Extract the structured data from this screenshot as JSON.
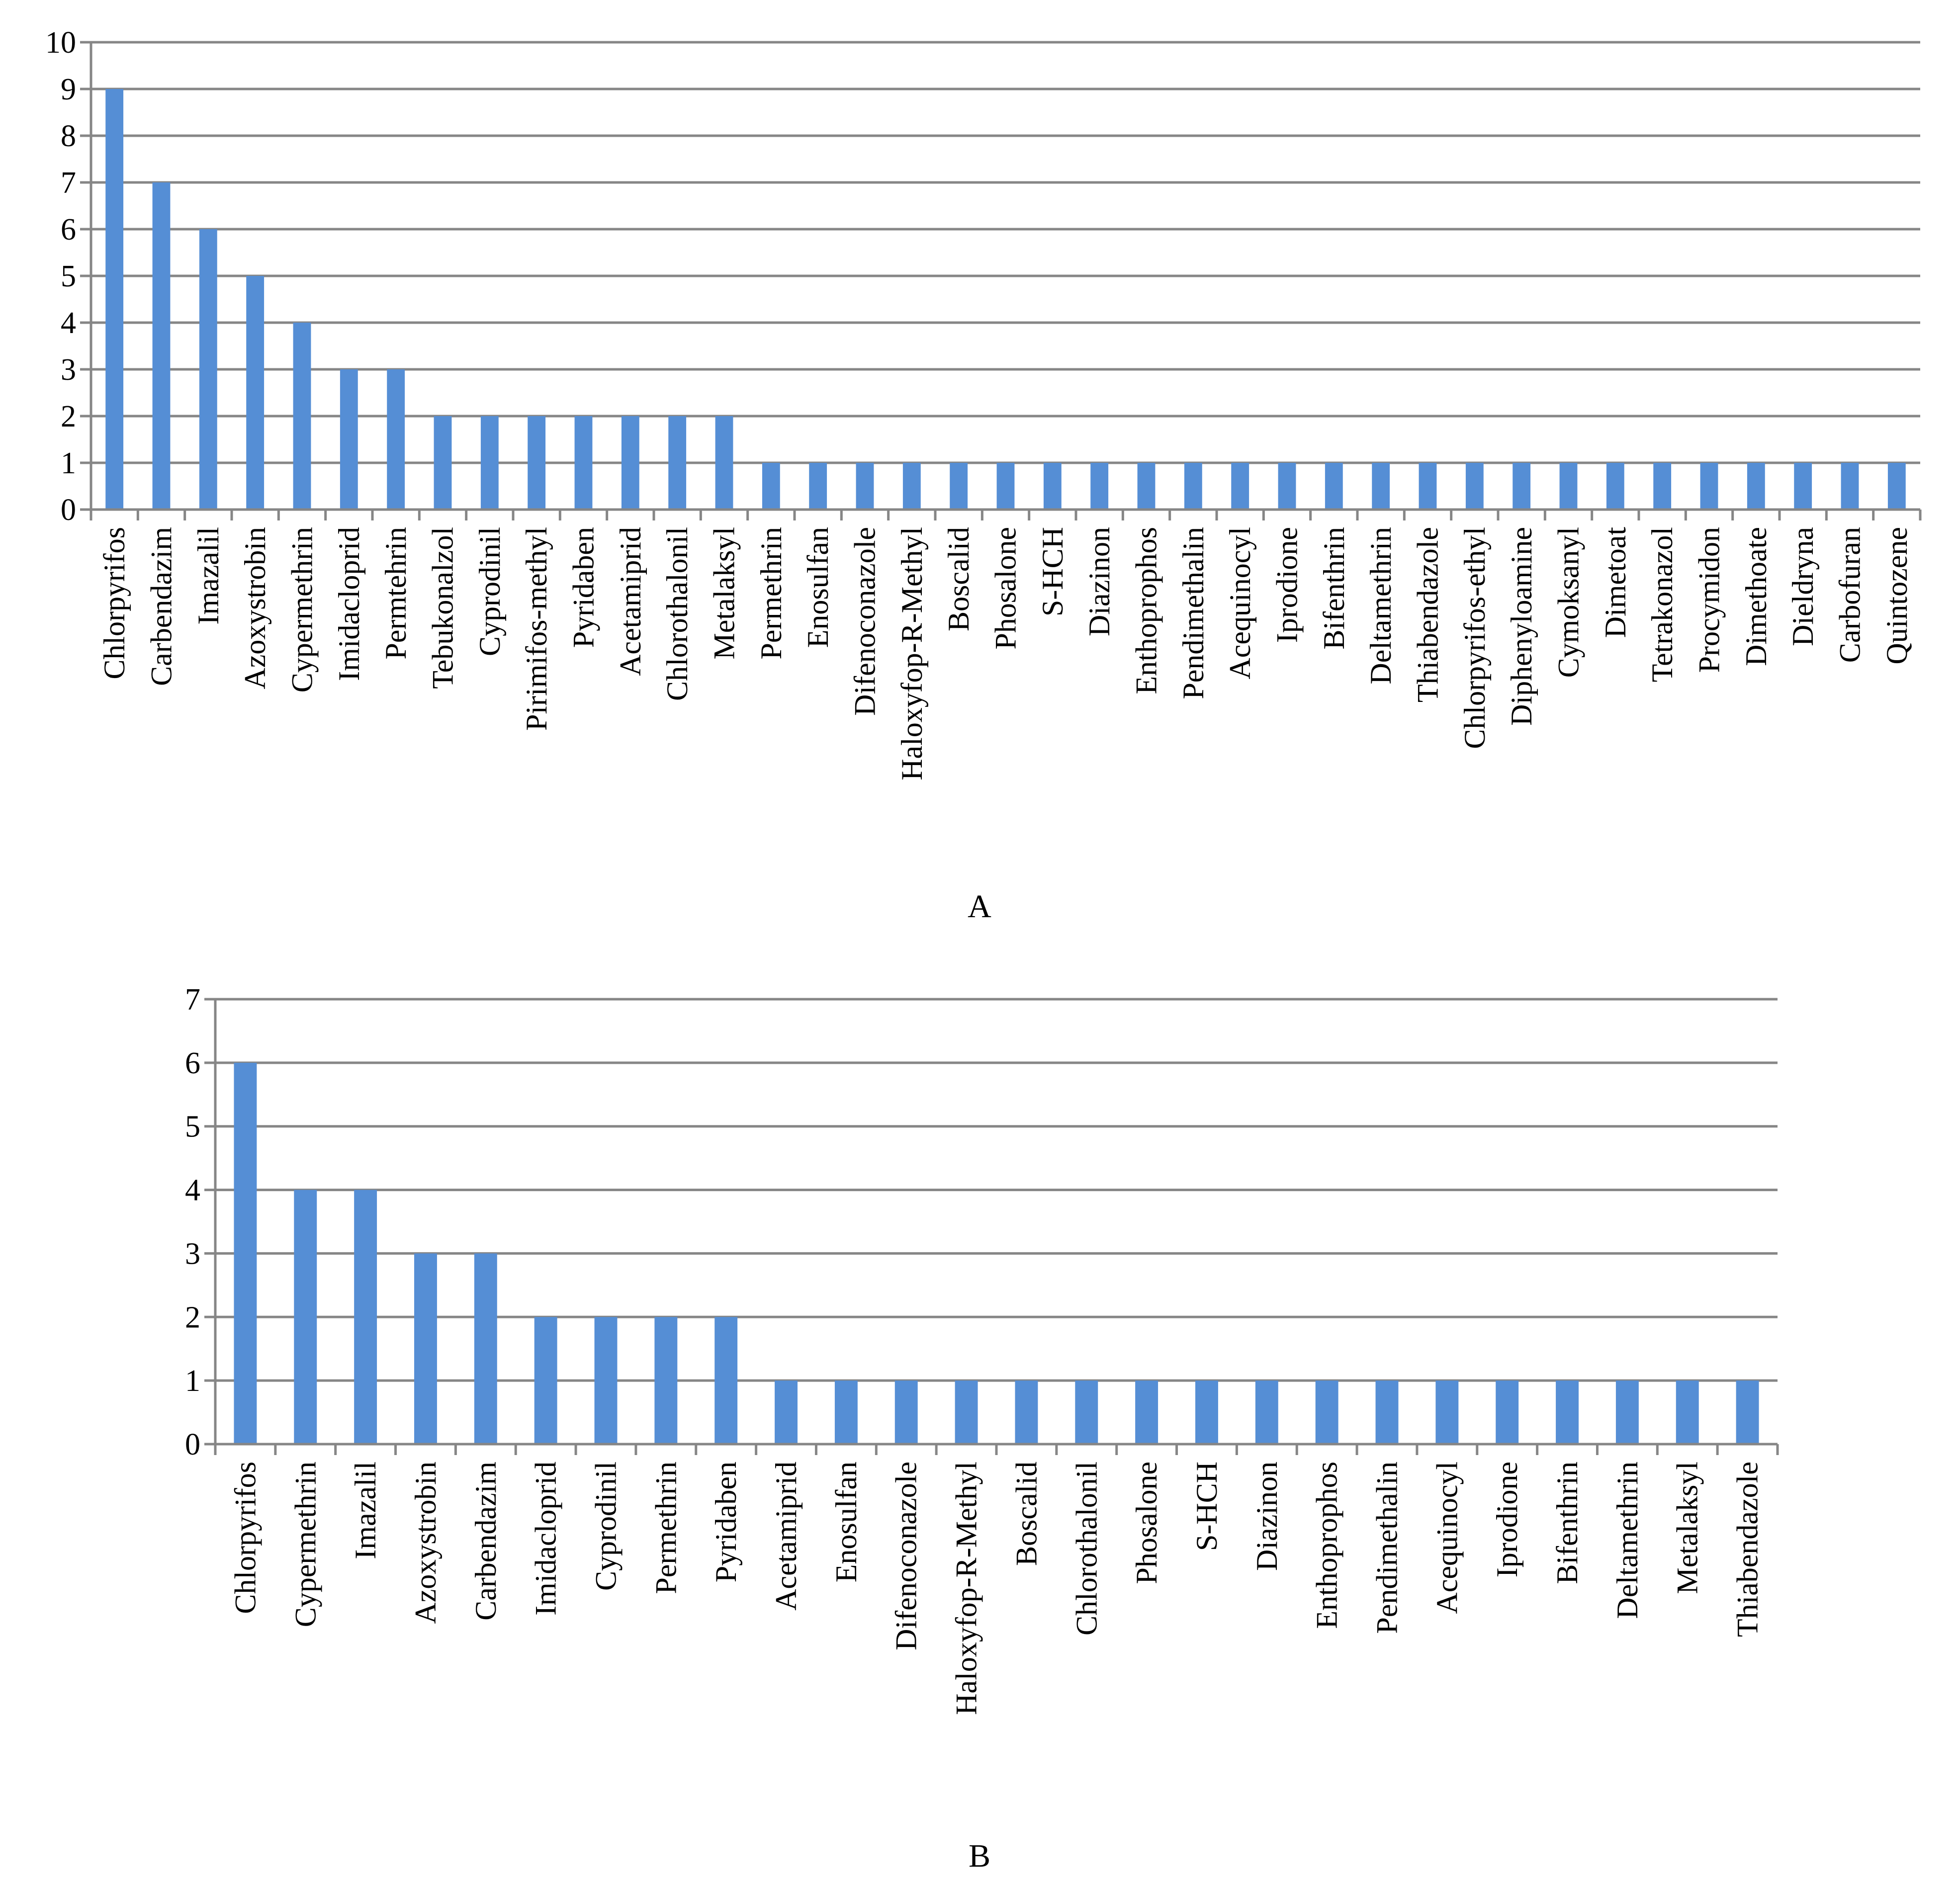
{
  "chart_data": [
    {
      "type": "bar",
      "panel_label": "A",
      "bar_color": "#558ED5",
      "grid": true,
      "ylim": [
        0,
        10
      ],
      "yticks": [
        "0",
        "1",
        "2",
        "3",
        "4",
        "5",
        "6",
        "7",
        "8",
        "9",
        "10"
      ],
      "categories": [
        "Chlorpyrifos",
        "Carbendazim",
        "Imazalil",
        "Azoxystrobin",
        "Cypermethrin",
        "Imidacloprid",
        "Permtehrin",
        "Tebukonalzol",
        "Cyprodinil",
        "Pirimifos-methyl",
        "Pyridaben",
        "Acetamiprid",
        "Chlorothalonil",
        "Metalaksyl",
        "Permethrin",
        "Enosulfan",
        "Difenoconazole",
        "Haloxyfop-R-Methyl",
        "Boscalid",
        "Phosalone",
        "S-HCH",
        "Diazinon",
        "Enthoprophos",
        "Pendimethalin",
        "Acequinocyl",
        "Iprodione",
        "Bifenthrin",
        "Deltamethrin",
        "Thiabendazole",
        "Chlorpyrifos-ethyl",
        "Diphenyloamine",
        "Cymoksanyl",
        "Dimetoat",
        "Tetrakonazol",
        "Procymidon",
        "Dimethoate",
        "Dieldryna",
        "Carbofuran",
        "Quintozene"
      ],
      "values": [
        9,
        7,
        6,
        5,
        4,
        3,
        3,
        2,
        2,
        2,
        2,
        2,
        2,
        2,
        1,
        1,
        1,
        1,
        1,
        1,
        1,
        1,
        1,
        1,
        1,
        1,
        1,
        1,
        1,
        1,
        1,
        1,
        1,
        1,
        1,
        1,
        1,
        1,
        1
      ]
    },
    {
      "type": "bar",
      "panel_label": "B",
      "bar_color": "#558ED5",
      "grid": true,
      "ylim": [
        0,
        7
      ],
      "yticks": [
        "0",
        "1",
        "2",
        "3",
        "4",
        "5",
        "6",
        "7"
      ],
      "categories": [
        "Chlorpyrifos",
        "Cypermethrin",
        "Imazalil",
        "Azoxystrobin",
        "Carbendazim",
        "Imidacloprid",
        "Cyprodinil",
        "Permethrin",
        "Pyridaben",
        "Acetamiprid",
        "Enosulfan",
        "Difenoconazole",
        "Haloxyfop-R-Methyl",
        "Boscalid",
        "Chlorothalonil",
        "Phosalone",
        "S-HCH",
        "Diazinon",
        "Enthoprophos",
        "Pendimethalin",
        "Acequinocyl",
        "Iprodione",
        "Bifenthrin",
        "Deltamethrin",
        "Metalaksyl",
        "Thiabendazole"
      ],
      "values": [
        6,
        4,
        4,
        3,
        3,
        2,
        2,
        2,
        2,
        1,
        1,
        1,
        1,
        1,
        1,
        1,
        1,
        1,
        1,
        1,
        1,
        1,
        1,
        1,
        1,
        1
      ]
    }
  ]
}
